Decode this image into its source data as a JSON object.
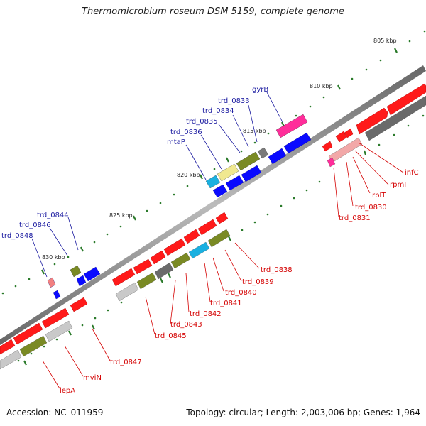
{
  "title": "Thermomicrobium roseum DSM 5159, complete genome",
  "footer": {
    "accession": "Accession: NC_011959",
    "stats": "Topology: circular; Length: 2,003,006 bp; Genes: 1,964"
  },
  "ticks": [
    "805 kbp",
    "810 kbp",
    "815 kbp",
    "820 kbp",
    "825 kbp",
    "830 kbp"
  ],
  "forward_labels": [
    "gyrB",
    "trd_0833",
    "trd_0834",
    "trd_0835",
    "trd_0836",
    "mtaP",
    "trd_0844",
    "trd_0846",
    "trd_0848"
  ],
  "reverse_labels": [
    "infC",
    "rpmI",
    "rplT",
    "trd_0830",
    "trd_0831",
    "trd_0838",
    "trd_0839",
    "trd_0840",
    "trd_0841",
    "trd_0842",
    "trd_0843",
    "trd_0845",
    "trd_0847",
    "mviN",
    "lepA"
  ],
  "colors": {
    "forward_label": "#1a1aa0",
    "reverse_label": "#d40000",
    "red": "#ff1a1a",
    "blue": "#0a0aff",
    "olive": "#7a8a24",
    "gray": "#c9c9c9",
    "dark_gray": "#6a6a6a",
    "pink": "#ff2d9a",
    "cyan": "#1ab0e0",
    "yellow": "#f0e890",
    "tick_dot": "#2a7a2a",
    "backbone": "#888888"
  }
}
